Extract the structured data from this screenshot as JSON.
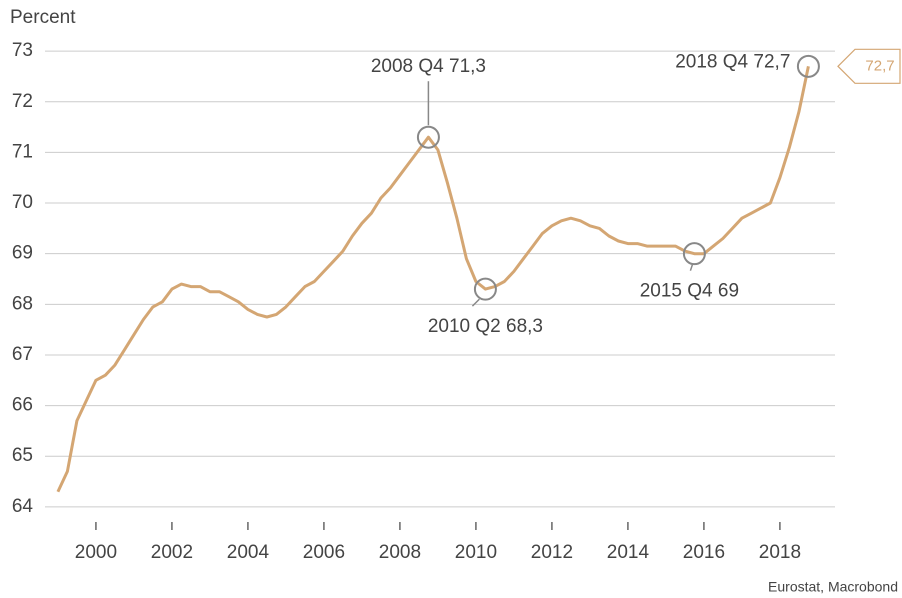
{
  "chart_data": {
    "type": "line",
    "y_label": "Percent",
    "source": "Eurostat, Macrobond",
    "color": "#d4a673",
    "x": [
      1999,
      1999.25,
      1999.5,
      1999.75,
      2000,
      2000.25,
      2000.5,
      2000.75,
      2001,
      2001.25,
      2001.5,
      2001.75,
      2002,
      2002.25,
      2002.5,
      2002.75,
      2003,
      2003.25,
      2003.5,
      2003.75,
      2004,
      2004.25,
      2004.5,
      2004.75,
      2005,
      2005.25,
      2005.5,
      2005.75,
      2006,
      2006.25,
      2006.5,
      2006.75,
      2007,
      2007.25,
      2007.5,
      2007.75,
      2008,
      2008.25,
      2008.5,
      2008.75,
      2009,
      2009.25,
      2009.5,
      2009.75,
      2010,
      2010.25,
      2010.5,
      2010.75,
      2011,
      2011.25,
      2011.5,
      2011.75,
      2012,
      2012.25,
      2012.5,
      2012.75,
      2013,
      2013.25,
      2013.5,
      2013.75,
      2014,
      2014.25,
      2014.5,
      2014.75,
      2015,
      2015.25,
      2015.5,
      2015.75,
      2016,
      2016.25,
      2016.5,
      2016.75,
      2017,
      2017.25,
      2017.5,
      2017.75,
      2018,
      2018.25,
      2018.5,
      2018.75
    ],
    "values": [
      64.3,
      64.7,
      65.7,
      66.1,
      66.5,
      66.6,
      66.8,
      67.1,
      67.4,
      67.7,
      67.95,
      68.05,
      68.3,
      68.4,
      68.35,
      68.35,
      68.25,
      68.25,
      68.15,
      68.05,
      67.9,
      67.8,
      67.75,
      67.8,
      67.95,
      68.15,
      68.35,
      68.45,
      68.65,
      68.85,
      69.05,
      69.35,
      69.6,
      69.8,
      70.1,
      70.3,
      70.55,
      70.8,
      71.05,
      71.3,
      71.05,
      70.4,
      69.7,
      68.9,
      68.45,
      68.3,
      68.35,
      68.45,
      68.65,
      68.9,
      69.15,
      69.4,
      69.55,
      69.65,
      69.7,
      69.65,
      69.55,
      69.5,
      69.35,
      69.25,
      69.2,
      69.2,
      69.15,
      69.15,
      69.15,
      69.15,
      69.05,
      69.0,
      69.0,
      69.15,
      69.3,
      69.5,
      69.7,
      69.8,
      69.9,
      70.0,
      70.5,
      71.1,
      71.8,
      72.7
    ],
    "last_value_label": "72,7",
    "annotations": [
      {
        "text": "2008 Q4 71,3",
        "x": 2008.75,
        "y": 71.3
      },
      {
        "text": "2010 Q2 68,3",
        "x": 2010.25,
        "y": 68.3
      },
      {
        "text": "2015 Q4 69",
        "x": 2015.75,
        "y": 69.0
      },
      {
        "text": "2018 Q4 72,7",
        "x": 2018.75,
        "y": 72.7
      }
    ],
    "xlim": [
      1998.66,
      2019.45
    ],
    "xticks": [
      2000,
      2002,
      2004,
      2006,
      2008,
      2010,
      2012,
      2014,
      2016,
      2018
    ],
    "ylim": [
      63.8,
      73.2
    ],
    "yticks": [
      64,
      65,
      66,
      67,
      68,
      69,
      70,
      71,
      72,
      73
    ],
    "grid": true
  }
}
